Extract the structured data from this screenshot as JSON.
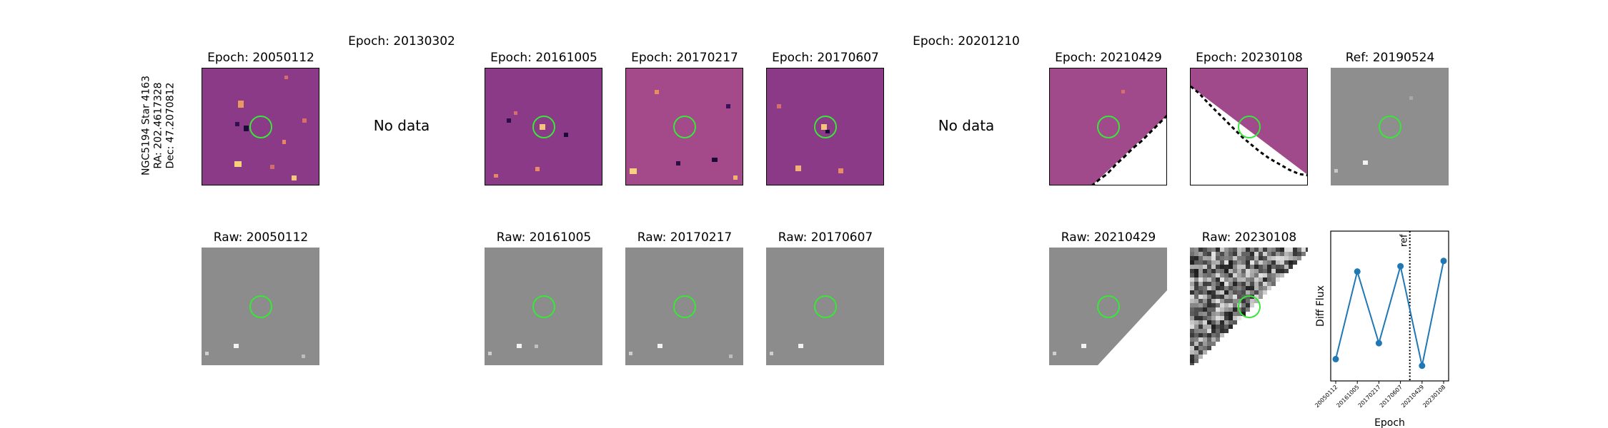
{
  "star": {
    "name": "NGC5194 Star 4163",
    "ra": "RA: 202.4617328",
    "dec": "Dec: 47.2070812"
  },
  "no_data_label": "No data",
  "top_row": [
    {
      "title": "Epoch: 20050112",
      "kind": "diff"
    },
    {
      "title": "Epoch: 20130302",
      "kind": "nodata"
    },
    {
      "title": "Epoch: 20161005",
      "kind": "diff"
    },
    {
      "title": "Epoch: 20170217",
      "kind": "diff"
    },
    {
      "title": "Epoch: 20170607",
      "kind": "diff"
    },
    {
      "title": "Epoch: 20201210",
      "kind": "nodata"
    },
    {
      "title": "Epoch: 20210429",
      "kind": "diff-partial"
    },
    {
      "title": "Epoch: 20230108",
      "kind": "diff-partial"
    },
    {
      "title": "Ref: 20190524",
      "kind": "reference"
    }
  ],
  "bottom_row": [
    {
      "title": "Raw: 20050112"
    },
    {
      "title": "Raw: 20161005"
    },
    {
      "title": "Raw: 20170217"
    },
    {
      "title": "Raw: 20170607"
    },
    {
      "title": "Raw: 20210429"
    },
    {
      "title": "Raw: 20230108"
    }
  ],
  "colors": {
    "marker_ring": "#39e639",
    "series": "#1f77b4"
  },
  "chart_data": {
    "type": "line",
    "x": [
      "20050112",
      "20161005",
      "20170217",
      "20170607",
      "20210429",
      "20230108"
    ],
    "y": [
      0.1,
      0.76,
      0.22,
      0.8,
      0.05,
      0.84
    ],
    "xlabel": "Epoch",
    "ylabel": "Diff Flux",
    "ref_line": {
      "x_between": [
        "20170607",
        "20210429"
      ],
      "label": "ref",
      "style": "dotted"
    },
    "y_ticks": "none",
    "grid": false
  }
}
